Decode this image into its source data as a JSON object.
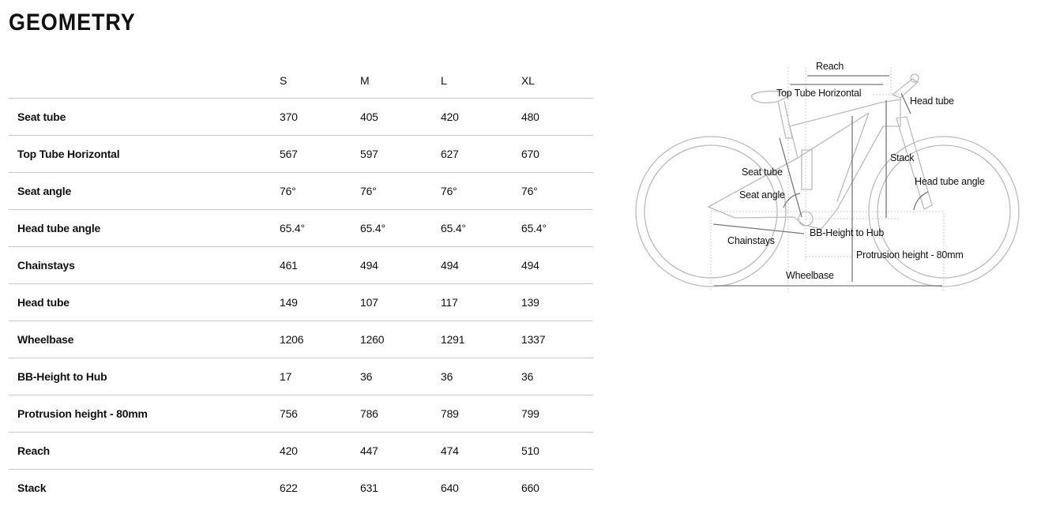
{
  "title": "GEOMETRY",
  "table": {
    "sizes": [
      "S",
      "M",
      "L",
      "XL"
    ],
    "rows": [
      {
        "label": "Seat tube",
        "values": [
          "370",
          "405",
          "420",
          "480"
        ]
      },
      {
        "label": "Top Tube Horizontal",
        "values": [
          "567",
          "597",
          "627",
          "670"
        ]
      },
      {
        "label": "Seat angle",
        "values": [
          "76°",
          "76°",
          "76°",
          "76°"
        ]
      },
      {
        "label": "Head tube angle",
        "values": [
          "65.4°",
          "65.4°",
          "65.4°",
          "65.4°"
        ]
      },
      {
        "label": "Chainstays",
        "values": [
          "461",
          "494",
          "494",
          "494"
        ]
      },
      {
        "label": "Head tube",
        "values": [
          "149",
          "107",
          "117",
          "139"
        ]
      },
      {
        "label": "Wheelbase",
        "values": [
          "1206",
          "1260",
          "1291",
          "1337"
        ]
      },
      {
        "label": "BB-Height to Hub",
        "values": [
          "17",
          "36",
          "36",
          "36"
        ]
      },
      {
        "label": "Protrusion height - 80mm",
        "values": [
          "756",
          "786",
          "789",
          "799"
        ]
      },
      {
        "label": "Reach",
        "values": [
          "420",
          "447",
          "474",
          "510"
        ]
      },
      {
        "label": "Stack",
        "values": [
          "622",
          "631",
          "640",
          "660"
        ]
      }
    ]
  },
  "diagram": {
    "reach": "Reach",
    "top_tube": "Top Tube Horizontal",
    "head_tube": "Head tube",
    "stack": "Stack",
    "seat_tube": "Seat tube",
    "seat_angle": "Seat angle",
    "head_tube_angle": "Head tube angle",
    "chainstays": "Chainstays",
    "bb_height": "BB-Height to Hub",
    "protrusion": "Protrusion height - 80mm",
    "wheelbase": "Wheelbase"
  }
}
